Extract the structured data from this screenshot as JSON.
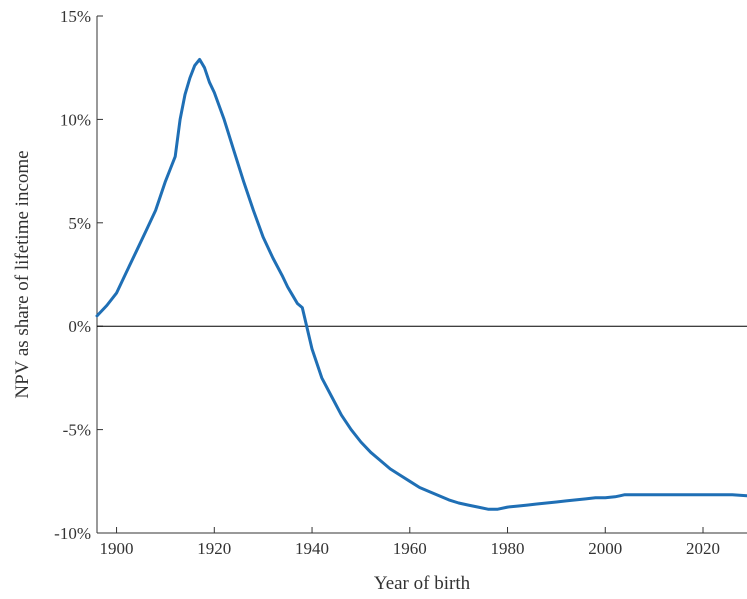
{
  "chart_data": {
    "type": "line",
    "xlabel": "Year of birth",
    "ylabel": "NPV as share of lifetime income",
    "xlim": [
      1896,
      2029
    ],
    "ylim": [
      -10,
      15
    ],
    "xticks": [
      1900,
      1920,
      1940,
      1960,
      1980,
      2000,
      2020
    ],
    "yticks": [
      -10,
      -5,
      0,
      5,
      10,
      15
    ],
    "ytick_labels": [
      "-10%",
      "-5%",
      "0%",
      "5%",
      "10%",
      "15%"
    ],
    "reference_line_y": 0,
    "grid": false,
    "series": [
      {
        "color": "#1f6fb5",
        "x": [
          1896,
          1898,
          1900,
          1902,
          1904,
          1906,
          1908,
          1909,
          1910,
          1911,
          1912,
          1913,
          1914,
          1915,
          1916,
          1917,
          1918,
          1919,
          1920,
          1922,
          1924,
          1926,
          1928,
          1930,
          1932,
          1934,
          1935,
          1936,
          1937,
          1938,
          1940,
          1942,
          1944,
          1946,
          1948,
          1950,
          1952,
          1954,
          1956,
          1958,
          1960,
          1962,
          1964,
          1966,
          1968,
          1970,
          1972,
          1974,
          1976,
          1978,
          1980,
          1982,
          1984,
          1986,
          1988,
          1990,
          1992,
          1994,
          1996,
          1998,
          2000,
          2002,
          2003,
          2004,
          2006,
          2008,
          2010,
          2014,
          2018,
          2022,
          2026,
          2029
        ],
        "y": [
          0.5,
          1.0,
          1.6,
          2.6,
          3.6,
          4.6,
          5.6,
          6.3,
          7.0,
          7.6,
          8.2,
          10.0,
          11.2,
          12.0,
          12.6,
          12.9,
          12.5,
          11.8,
          11.3,
          10.0,
          8.5,
          7.0,
          5.6,
          4.3,
          3.3,
          2.4,
          1.9,
          1.5,
          1.1,
          0.9,
          -1.1,
          -2.5,
          -3.4,
          -4.3,
          -5.0,
          -5.6,
          -6.1,
          -6.5,
          -6.9,
          -7.2,
          -7.5,
          -7.8,
          -8.0,
          -8.2,
          -8.4,
          -8.55,
          -8.65,
          -8.75,
          -8.85,
          -8.85,
          -8.75,
          -8.7,
          -8.65,
          -8.6,
          -8.55,
          -8.5,
          -8.45,
          -8.4,
          -8.35,
          -8.3,
          -8.3,
          -8.25,
          -8.2,
          -8.15,
          -8.15,
          -8.15,
          -8.15,
          -8.15,
          -8.15,
          -8.15,
          -8.15,
          -8.2
        ]
      }
    ]
  }
}
